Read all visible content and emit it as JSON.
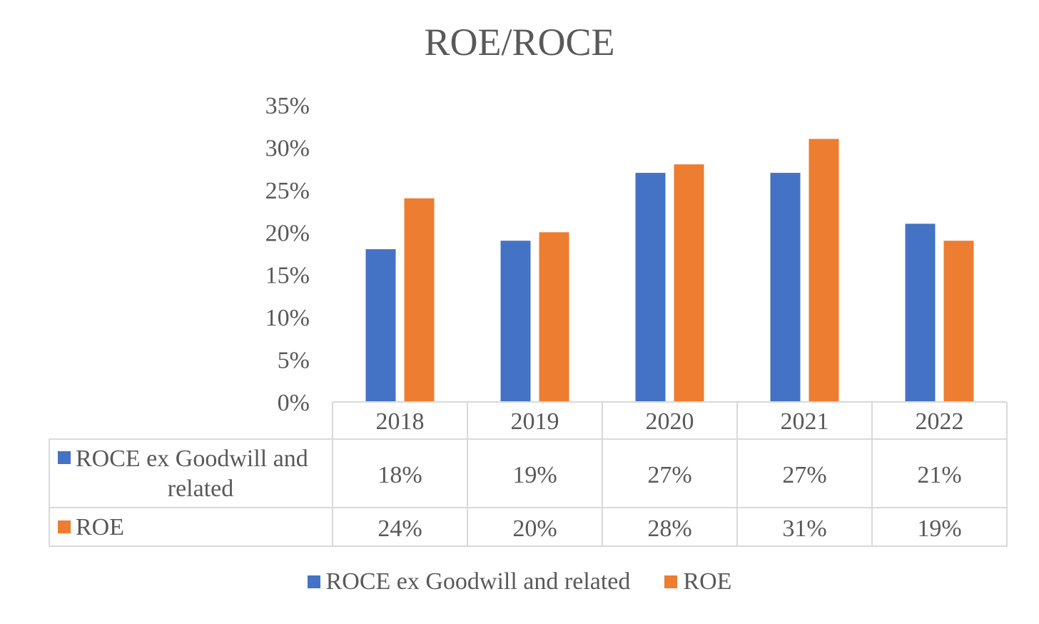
{
  "chart_data": {
    "type": "bar",
    "title": "ROE/ROCE",
    "categories": [
      "2018",
      "2019",
      "2020",
      "2021",
      "2022"
    ],
    "series": [
      {
        "name": "ROCE ex Goodwill and related",
        "color": "#4472C4",
        "values": [
          18,
          19,
          27,
          27,
          21
        ],
        "table_labels": [
          "18%",
          "19%",
          "27%",
          "27%",
          "21%"
        ]
      },
      {
        "name": "ROE",
        "color": "#ED7D31",
        "values": [
          24,
          20,
          28,
          31,
          19
        ],
        "table_labels": [
          "24%",
          "20%",
          "28%",
          "31%",
          "19%"
        ]
      }
    ],
    "ylim": [
      0,
      35
    ],
    "yticks": [
      "0%",
      "5%",
      "10%",
      "15%",
      "20%",
      "25%",
      "30%",
      "35%"
    ],
    "data_table": true,
    "legend_position": "bottom",
    "grid": false
  }
}
